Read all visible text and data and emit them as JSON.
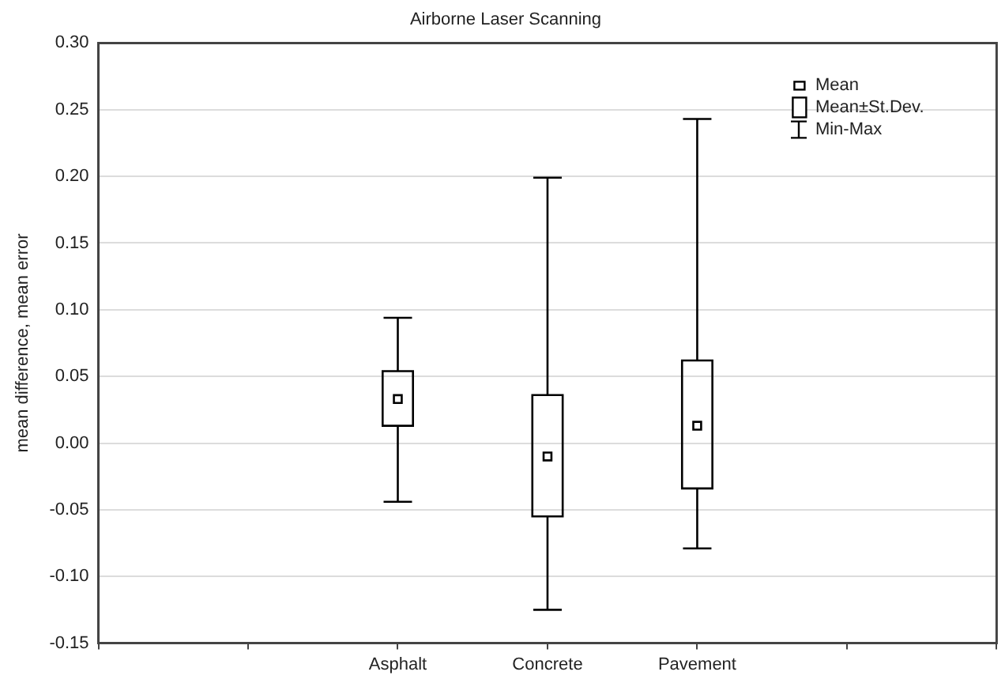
{
  "chart_data": {
    "type": "box",
    "title": "Airborne Laser Scanning",
    "ylabel": "mean difference, mean error",
    "categories": [
      null,
      null,
      "Asphalt",
      "Concrete",
      "Pavement",
      null,
      null
    ],
    "boxes": [
      null,
      null,
      {
        "low": -0.044,
        "q1": 0.013,
        "q3": 0.054,
        "high": 0.094,
        "mean": 0.033
      },
      {
        "low": -0.125,
        "q1": -0.055,
        "q3": 0.036,
        "high": 0.199,
        "mean": -0.01
      },
      {
        "low": -0.079,
        "q1": -0.034,
        "q3": 0.062,
        "high": 0.243,
        "mean": 0.013
      },
      null,
      null
    ],
    "color": "#000000",
    "ylim": [
      -0.15,
      0.3
    ],
    "yticks": [
      {
        "value": -0.15,
        "label": "-0.15"
      },
      {
        "value": -0.1,
        "label": "-0.10"
      },
      {
        "value": -0.05,
        "label": "-0.05"
      },
      {
        "value": 0,
        "label": "0.00"
      },
      {
        "value": 0.05,
        "label": "0.05"
      },
      {
        "value": 0.1,
        "label": "0.10"
      },
      {
        "value": 0.15,
        "label": "0.15"
      },
      {
        "value": 0.2,
        "label": "0.20"
      },
      {
        "value": 0.25,
        "label": "0.25"
      },
      {
        "value": 0.3,
        "label": "0.30"
      }
    ],
    "grid": "y",
    "annotations": [
      "Mean",
      "Mean±St.Dev.",
      "Min-Max"
    ]
  }
}
